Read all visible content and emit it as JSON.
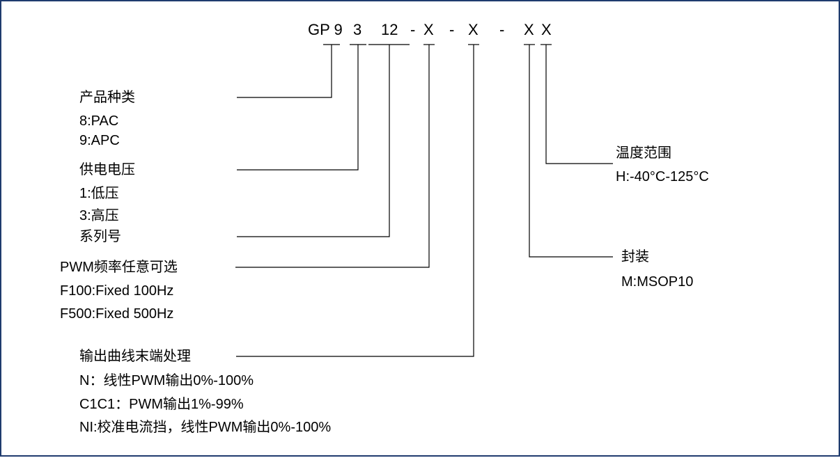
{
  "code": {
    "parts": [
      "GP 9",
      "3",
      "12",
      "-",
      "X",
      "-",
      "X",
      "-",
      "X",
      "X"
    ]
  },
  "groups": {
    "product_type": {
      "title": "产品种类",
      "options": [
        "8:PAC",
        "9:APC"
      ]
    },
    "supply_voltage": {
      "title": "供电电压",
      "options": [
        "1:低压",
        "3:高压"
      ]
    },
    "series": {
      "title": "系列号"
    },
    "pwm_frequency": {
      "title": "PWM频率任意可选",
      "options": [
        "F100:Fixed 100Hz",
        "F500:Fixed 500Hz"
      ]
    },
    "output_curve": {
      "title": "输出曲线末端处理",
      "options": [
        "N：线性PWM输出0%-100%",
        "C1C1：PWM输出1%-99%",
        "NI:校准电流挡，线性PWM输出0%-100%"
      ]
    },
    "package": {
      "title": "封装",
      "options": [
        "M:MSOP10"
      ]
    },
    "temperature": {
      "title": "温度范围",
      "options": [
        "H:-40°C-125°C"
      ]
    }
  },
  "colors": {
    "border": "#1f3b6e",
    "line": "#000000",
    "text": "#000000"
  }
}
